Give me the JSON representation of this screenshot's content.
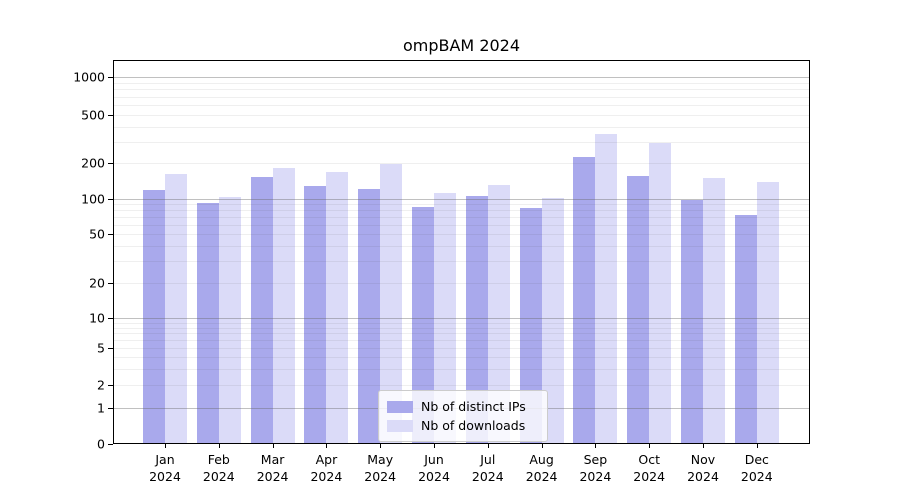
{
  "title": "ompBAM 2024",
  "chart_data": {
    "type": "bar",
    "title": "ompBAM 2024",
    "yscale": "symlog",
    "grid": true,
    "ylim": [
      0,
      1400
    ],
    "yticks": [
      0,
      1,
      2,
      5,
      10,
      20,
      50,
      100,
      200,
      500,
      1000
    ],
    "x_tick_labels": [
      "Jan\n2024",
      "Feb\n2024",
      "Mar\n2024",
      "Apr\n2024",
      "May\n2024",
      "Jun\n2024",
      "Jul\n2024",
      "Aug\n2024",
      "Sep\n2024",
      "Oct\n2024",
      "Nov\n2024",
      "Dec\n2024"
    ],
    "legend_position": "bottom-center",
    "series": [
      {
        "name": "Nb of distinct IPs",
        "color": "#a9a9ec",
        "values": [
          117,
          92,
          152,
          128,
          120,
          84,
          105,
          83,
          225,
          154,
          97,
          73
        ]
      },
      {
        "name": "Nb of downloads",
        "color": "#dbdbf8",
        "values": [
          160,
          104,
          180,
          168,
          198,
          112,
          131,
          102,
          350,
          295,
          149,
          138
        ]
      }
    ]
  }
}
